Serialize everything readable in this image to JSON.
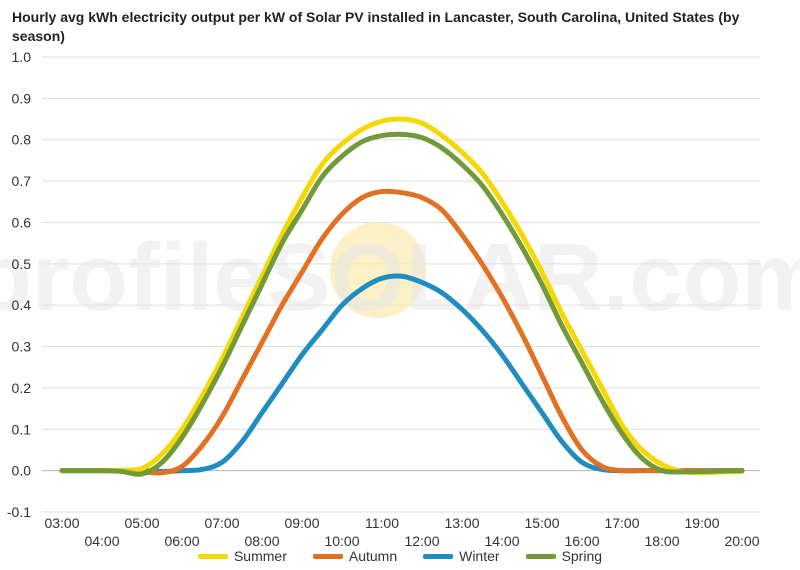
{
  "chart_data": {
    "type": "line",
    "title": "Hourly avg kWh electricity output per kW of Solar PV installed in Lancaster, South Carolina, United States (by season)",
    "xlabel": "",
    "ylabel": "",
    "ylim": [
      -0.1,
      1.0
    ],
    "yticks": [
      "-0.1",
      "0.0",
      "0.1",
      "0.2",
      "0.3",
      "0.4",
      "0.5",
      "0.6",
      "0.7",
      "0.8",
      "0.9",
      "1.0"
    ],
    "xticks": [
      "03:00",
      "04:00",
      "05:00",
      "06:00",
      "07:00",
      "08:00",
      "09:00",
      "10:00",
      "11:00",
      "12:00",
      "13:00",
      "14:00",
      "15:00",
      "16:00",
      "17:00",
      "18:00",
      "19:00",
      "20:00"
    ],
    "x": [
      3,
      3.5,
      4,
      4.5,
      5,
      5.5,
      6,
      6.5,
      7,
      7.5,
      8,
      8.5,
      9,
      9.5,
      10,
      10.5,
      11,
      11.5,
      12,
      12.5,
      13,
      13.5,
      14,
      14.5,
      15,
      15.5,
      16,
      16.5,
      17,
      17.5,
      18,
      18.5,
      19,
      19.5,
      20
    ],
    "grid": true,
    "legend": "bottom",
    "watermark": "profileSOLAR.com",
    "series": [
      {
        "name": "Summer",
        "color": "#f5d800",
        "values": [
          0,
          0,
          0,
          0.001,
          0.005,
          0.04,
          0.1,
          0.18,
          0.27,
          0.37,
          0.47,
          0.57,
          0.66,
          0.74,
          0.79,
          0.825,
          0.845,
          0.85,
          0.84,
          0.81,
          0.77,
          0.72,
          0.65,
          0.57,
          0.48,
          0.38,
          0.29,
          0.2,
          0.11,
          0.05,
          0.015,
          -0.002,
          -0.005,
          -0.003,
          -0.002
        ]
      },
      {
        "name": "Autumn",
        "color": "#e27223",
        "values": [
          0,
          0,
          0,
          0,
          -0.003,
          -0.005,
          0.01,
          0.06,
          0.13,
          0.22,
          0.31,
          0.4,
          0.48,
          0.56,
          0.62,
          0.66,
          0.675,
          0.672,
          0.66,
          0.63,
          0.57,
          0.5,
          0.42,
          0.33,
          0.23,
          0.13,
          0.05,
          0.01,
          0,
          0,
          0,
          0,
          0,
          0,
          0
        ]
      },
      {
        "name": "Winter",
        "color": "#1f8dbf",
        "values": [
          0,
          0,
          0,
          0,
          0,
          -0.002,
          0,
          0.003,
          0.02,
          0.07,
          0.14,
          0.21,
          0.28,
          0.34,
          0.4,
          0.44,
          0.465,
          0.47,
          0.455,
          0.43,
          0.39,
          0.34,
          0.28,
          0.21,
          0.14,
          0.07,
          0.02,
          0.003,
          0,
          0,
          0,
          0,
          0,
          0,
          0
        ]
      },
      {
        "name": "Spring",
        "color": "#72993a",
        "values": [
          0,
          0,
          0,
          -0.002,
          -0.008,
          0.02,
          0.08,
          0.16,
          0.25,
          0.35,
          0.45,
          0.55,
          0.63,
          0.71,
          0.76,
          0.795,
          0.81,
          0.813,
          0.805,
          0.78,
          0.74,
          0.69,
          0.62,
          0.54,
          0.45,
          0.35,
          0.26,
          0.17,
          0.09,
          0.03,
          0,
          -0.003,
          -0.002,
          -0.001,
          0
        ]
      }
    ]
  }
}
